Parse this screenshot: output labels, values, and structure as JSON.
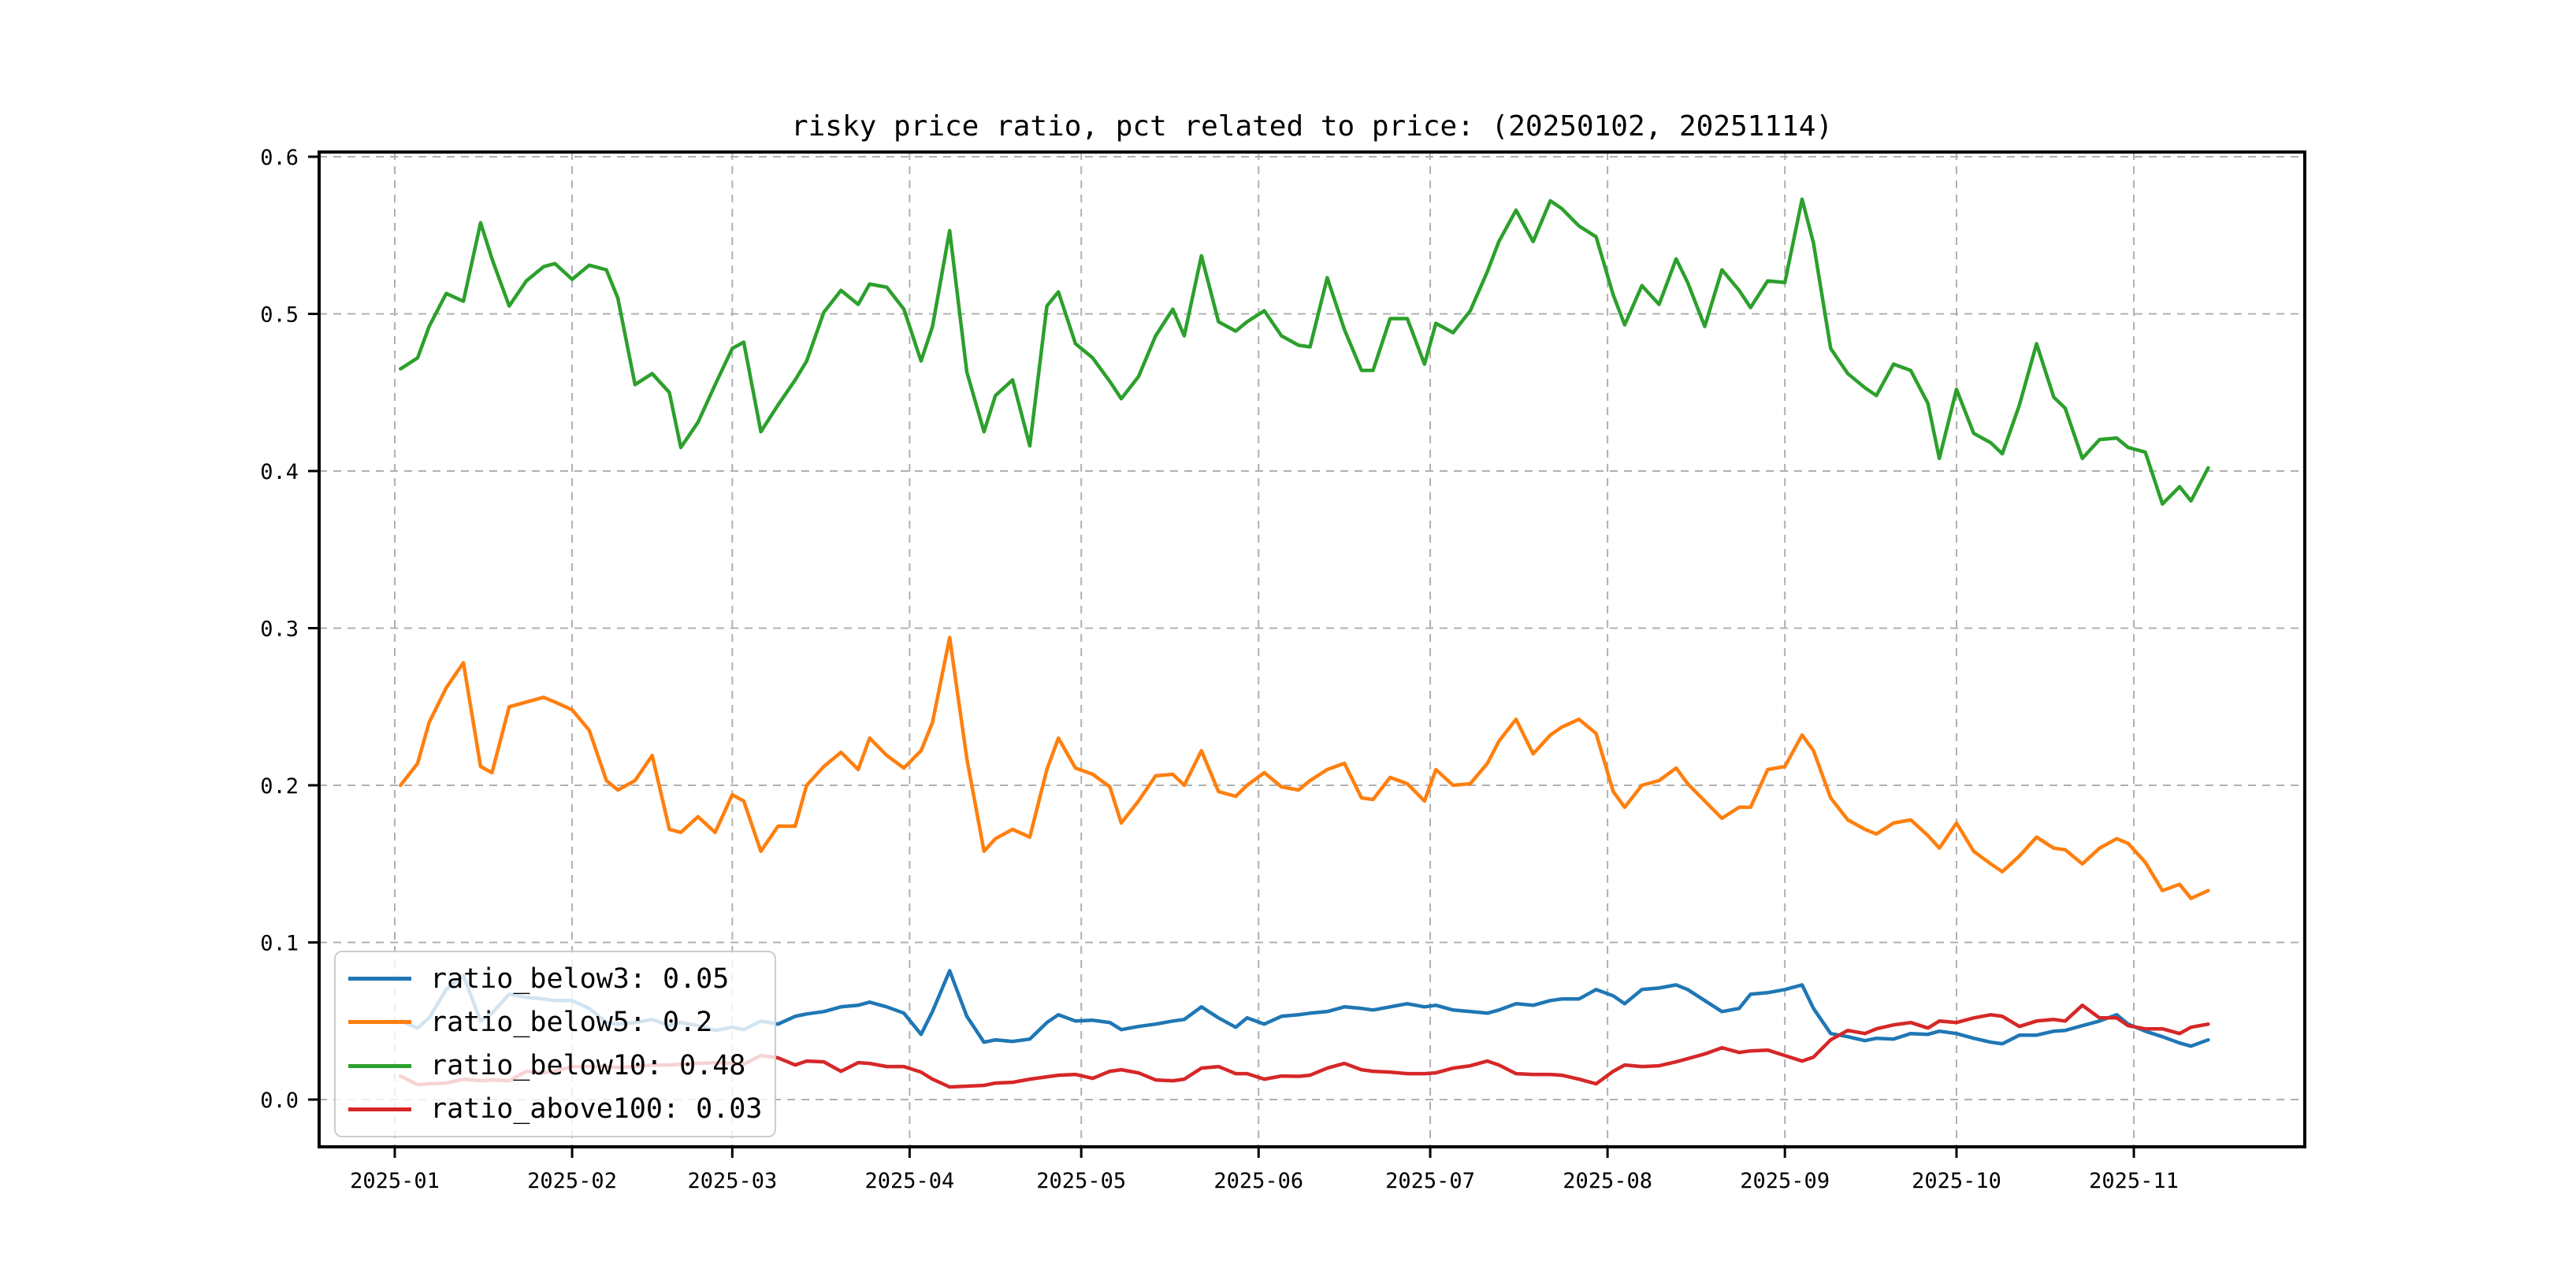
{
  "chart_data": {
    "type": "line",
    "title": "risky price ratio, pct related to price: (20250102, 20251114)",
    "grid": true,
    "grid_style": "dashed",
    "legend_position": "lower left",
    "ylim": [
      -0.03,
      0.632
    ],
    "y_ticks": [
      {
        "value": 0.0,
        "label": "0.0"
      },
      {
        "value": 0.1,
        "label": "0.1"
      },
      {
        "value": 0.2,
        "label": "0.2"
      },
      {
        "value": 0.3,
        "label": "0.3"
      },
      {
        "value": 0.4,
        "label": "0.4"
      },
      {
        "value": 0.5,
        "label": "0.5"
      },
      {
        "value": 0.6,
        "label": "0.6"
      }
    ],
    "x_ticks": [
      {
        "day": 1,
        "label": "2025-01"
      },
      {
        "day": 32,
        "label": "2025-02"
      },
      {
        "day": 60,
        "label": "2025-03"
      },
      {
        "day": 91,
        "label": "2025-04"
      },
      {
        "day": 121,
        "label": "2025-05"
      },
      {
        "day": 152,
        "label": "2025-06"
      },
      {
        "day": 182,
        "label": "2025-07"
      },
      {
        "day": 213,
        "label": "2025-08"
      },
      {
        "day": 244,
        "label": "2025-09"
      },
      {
        "day": 274,
        "label": "2025-10"
      },
      {
        "day": 305,
        "label": "2025-11"
      }
    ],
    "x_range_label": "(20250102, 20251114)",
    "x_days": [
      2,
      5,
      7,
      10,
      13,
      16,
      18,
      21,
      24,
      27,
      29,
      32,
      35,
      38,
      40,
      43,
      46,
      49,
      51,
      54,
      57,
      60,
      62,
      65,
      68,
      71,
      73,
      76,
      79,
      82,
      84,
      87,
      90,
      93,
      95,
      98,
      101,
      104,
      106,
      109,
      112,
      115,
      117,
      120,
      123,
      126,
      128,
      131,
      134,
      137,
      139,
      142,
      145,
      148,
      150,
      153,
      156,
      159,
      161,
      164,
      167,
      170,
      172,
      175,
      178,
      181,
      183,
      186,
      189,
      192,
      194,
      197,
      200,
      203,
      205,
      208,
      211,
      214,
      216,
      219,
      222,
      225,
      227,
      230,
      233,
      236,
      238,
      241,
      244,
      247,
      249,
      252,
      255,
      258,
      260,
      263,
      266,
      269,
      271,
      274,
      277,
      280,
      282,
      285,
      288,
      291,
      293,
      296,
      299,
      302,
      304,
      307,
      310,
      313,
      315,
      318
    ],
    "series": [
      {
        "name": "ratio_below3",
        "legend_label": "ratio_below3: 0.05",
        "color": "#1f77b4",
        "values": [
          0.05,
          0.0455,
          0.052,
          0.07,
          0.079,
          0.05,
          0.055,
          0.067,
          0.065,
          0.064,
          0.063,
          0.063,
          0.058,
          0.049,
          0.048,
          0.049,
          0.051,
          0.047,
          0.049,
          0.047,
          0.044,
          0.046,
          0.0445,
          0.05,
          0.048,
          0.053,
          0.0545,
          0.056,
          0.059,
          0.06,
          0.062,
          0.059,
          0.055,
          0.0415,
          0.056,
          0.082,
          0.053,
          0.0365,
          0.038,
          0.037,
          0.0385,
          0.049,
          0.054,
          0.05,
          0.0505,
          0.049,
          0.0445,
          0.0465,
          0.048,
          0.05,
          0.051,
          0.059,
          0.052,
          0.046,
          0.052,
          0.048,
          0.053,
          0.054,
          0.055,
          0.056,
          0.059,
          0.058,
          0.057,
          0.059,
          0.061,
          0.059,
          0.06,
          0.057,
          0.056,
          0.055,
          0.057,
          0.061,
          0.06,
          0.063,
          0.064,
          0.064,
          0.07,
          0.066,
          0.061,
          0.07,
          0.071,
          0.073,
          0.07,
          0.063,
          0.056,
          0.058,
          0.067,
          0.068,
          0.07,
          0.073,
          0.058,
          0.042,
          0.04,
          0.0375,
          0.039,
          0.0385,
          0.042,
          0.0415,
          0.0435,
          0.042,
          0.039,
          0.0365,
          0.0355,
          0.041,
          0.041,
          0.0435,
          0.044,
          0.047,
          0.05,
          0.054,
          0.048,
          0.0435,
          0.04,
          0.036,
          0.034,
          0.038
        ]
      },
      {
        "name": "ratio_below5",
        "legend_label": "ratio_below5: 0.2",
        "color": "#ff7f0e",
        "values": [
          0.2,
          0.214,
          0.24,
          0.262,
          0.278,
          0.212,
          0.208,
          0.25,
          0.253,
          0.256,
          0.253,
          0.248,
          0.235,
          0.203,
          0.197,
          0.203,
          0.219,
          0.172,
          0.17,
          0.18,
          0.17,
          0.194,
          0.19,
          0.158,
          0.174,
          0.174,
          0.2,
          0.212,
          0.221,
          0.21,
          0.23,
          0.219,
          0.211,
          0.222,
          0.24,
          0.294,
          0.217,
          0.158,
          0.166,
          0.172,
          0.167,
          0.21,
          0.23,
          0.211,
          0.207,
          0.199,
          0.176,
          0.19,
          0.206,
          0.207,
          0.2,
          0.222,
          0.196,
          0.193,
          0.2,
          0.208,
          0.199,
          0.197,
          0.203,
          0.21,
          0.214,
          0.192,
          0.191,
          0.205,
          0.201,
          0.19,
          0.21,
          0.2,
          0.201,
          0.214,
          0.228,
          0.242,
          0.22,
          0.232,
          0.237,
          0.242,
          0.233,
          0.196,
          0.186,
          0.2,
          0.203,
          0.211,
          0.201,
          0.19,
          0.179,
          0.186,
          0.186,
          0.21,
          0.212,
          0.232,
          0.222,
          0.192,
          0.178,
          0.172,
          0.169,
          0.176,
          0.178,
          0.168,
          0.16,
          0.176,
          0.158,
          0.15,
          0.145,
          0.155,
          0.167,
          0.16,
          0.159,
          0.15,
          0.16,
          0.166,
          0.163,
          0.151,
          0.133,
          0.137,
          0.128,
          0.133
        ]
      },
      {
        "name": "ratio_below10",
        "legend_label": "ratio_below10: 0.48",
        "color": "#2ca02c",
        "values": [
          0.465,
          0.472,
          0.492,
          0.513,
          0.508,
          0.558,
          0.535,
          0.505,
          0.521,
          0.53,
          0.532,
          0.522,
          0.531,
          0.528,
          0.51,
          0.455,
          0.462,
          0.45,
          0.415,
          0.431,
          0.455,
          0.478,
          0.482,
          0.425,
          0.442,
          0.458,
          0.47,
          0.501,
          0.515,
          0.506,
          0.519,
          0.517,
          0.503,
          0.47,
          0.492,
          0.553,
          0.463,
          0.425,
          0.448,
          0.458,
          0.416,
          0.505,
          0.514,
          0.481,
          0.472,
          0.457,
          0.446,
          0.46,
          0.486,
          0.503,
          0.486,
          0.537,
          0.495,
          0.489,
          0.495,
          0.502,
          0.486,
          0.48,
          0.479,
          0.523,
          0.49,
          0.464,
          0.464,
          0.497,
          0.497,
          0.468,
          0.494,
          0.488,
          0.502,
          0.527,
          0.546,
          0.566,
          0.546,
          0.572,
          0.567,
          0.556,
          0.549,
          0.512,
          0.493,
          0.518,
          0.506,
          0.535,
          0.52,
          0.492,
          0.528,
          0.515,
          0.504,
          0.521,
          0.52,
          0.573,
          0.545,
          0.478,
          0.462,
          0.453,
          0.448,
          0.468,
          0.464,
          0.443,
          0.408,
          0.452,
          0.424,
          0.418,
          0.411,
          0.442,
          0.481,
          0.447,
          0.44,
          0.408,
          0.42,
          0.421,
          0.415,
          0.412,
          0.379,
          0.39,
          0.381,
          0.402
        ]
      },
      {
        "name": "ratio_above100",
        "legend_label": "ratio_above100: 0.03",
        "color": "#d62728",
        "values": [
          0.015,
          0.0095,
          0.01,
          0.0105,
          0.013,
          0.012,
          0.0125,
          0.012,
          0.018,
          0.017,
          0.018,
          0.021,
          0.021,
          0.021,
          0.0205,
          0.021,
          0.022,
          0.022,
          0.0225,
          0.023,
          0.0235,
          0.023,
          0.0225,
          0.028,
          0.0265,
          0.022,
          0.0245,
          0.024,
          0.018,
          0.0235,
          0.023,
          0.021,
          0.021,
          0.0175,
          0.013,
          0.008,
          0.0085,
          0.009,
          0.0105,
          0.011,
          0.013,
          0.0145,
          0.0155,
          0.016,
          0.0135,
          0.018,
          0.019,
          0.017,
          0.0125,
          0.012,
          0.013,
          0.02,
          0.021,
          0.0165,
          0.0165,
          0.013,
          0.015,
          0.0148,
          0.0155,
          0.02,
          0.023,
          0.019,
          0.018,
          0.0175,
          0.0165,
          0.0165,
          0.017,
          0.02,
          0.0215,
          0.0245,
          0.022,
          0.0165,
          0.016,
          0.016,
          0.0155,
          0.013,
          0.01,
          0.018,
          0.022,
          0.021,
          0.0215,
          0.024,
          0.026,
          0.029,
          0.033,
          0.03,
          0.031,
          0.0315,
          0.028,
          0.0245,
          0.027,
          0.038,
          0.044,
          0.042,
          0.045,
          0.0475,
          0.049,
          0.0455,
          0.05,
          0.049,
          0.052,
          0.054,
          0.053,
          0.0465,
          0.05,
          0.051,
          0.05,
          0.06,
          0.052,
          0.052,
          0.047,
          0.045,
          0.045,
          0.042,
          0.046,
          0.048
        ]
      }
    ],
    "colors": {
      "spine": "#000000",
      "grid": "#b0b0b0",
      "background": "#ffffff"
    }
  }
}
